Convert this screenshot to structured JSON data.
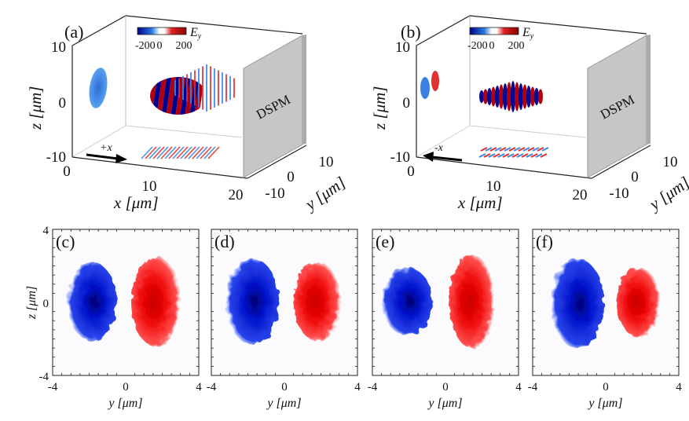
{
  "figure": {
    "panels_3d": [
      {
        "id": "a",
        "label": "(a)",
        "direction_label": "+x",
        "direction": "right",
        "plate_label": "DSPM",
        "colorbar": {
          "label": "E",
          "label_sub": "y",
          "ticks": [
            "-200",
            "0",
            "200"
          ]
        },
        "z_ticks": [
          "10",
          "0",
          "-10"
        ],
        "x_ticks": [
          "0",
          "10",
          "20"
        ],
        "y_ticks": [
          "-10",
          "0",
          "10"
        ],
        "xlabel": "x [μm]",
        "ylabel": "y [μm]",
        "zlabel": "z [μm]"
      },
      {
        "id": "b",
        "label": "(b)",
        "direction_label": "-x",
        "direction": "left",
        "plate_label": "DSPM",
        "colorbar": {
          "label": "E",
          "label_sub": "y",
          "ticks": [
            "-200",
            "0",
            "200"
          ]
        },
        "z_ticks": [
          "10",
          "0",
          "-10"
        ],
        "x_ticks": [
          "0",
          "10",
          "20"
        ],
        "y_ticks": [
          "-10",
          "0",
          "10"
        ],
        "xlabel": "x [μm]",
        "ylabel": "y [μm]",
        "zlabel": "z [μm]"
      }
    ],
    "panels_2d": [
      {
        "id": "c",
        "label": "(c)",
        "x_ticks": [
          "-4",
          "0",
          "4"
        ],
        "y_ticks": [
          "4",
          "0",
          "-4"
        ],
        "xlabel": "y [μm]",
        "ylabel": "z [μm]"
      },
      {
        "id": "d",
        "label": "(d)",
        "x_ticks": [
          "-4",
          "0",
          "4"
        ],
        "xlabel": "y [μm]"
      },
      {
        "id": "e",
        "label": "(e)",
        "x_ticks": [
          "-4",
          "0",
          "4"
        ],
        "xlabel": "y [μm]"
      },
      {
        "id": "f",
        "label": "(f)",
        "x_ticks": [
          "-4",
          "0",
          "4"
        ],
        "xlabel": "y [μm]"
      }
    ],
    "colors": {
      "positive": "#e00000",
      "negative": "#0010d0",
      "plate": "#c8c8c8"
    }
  },
  "chart_data": [
    {
      "type": "heatmap",
      "title": "(c)",
      "xlabel": "y [μm]",
      "ylabel": "z [μm]",
      "xlim": [
        -4,
        4
      ],
      "ylim": [
        -4,
        4
      ],
      "lobes": [
        {
          "sign": "negative",
          "center": [
            -1.8,
            0.0
          ],
          "y_extent": [
            -3.2,
            -0.5
          ],
          "z_extent": [
            -2.1,
            2.2
          ]
        },
        {
          "sign": "positive",
          "center": [
            1.8,
            -0.3
          ],
          "y_extent": [
            0.3,
            3.0
          ],
          "z_extent": [
            -2.4,
            2.5
          ]
        }
      ]
    },
    {
      "type": "heatmap",
      "title": "(d)",
      "xlabel": "y [μm]",
      "xlim": [
        -4,
        4
      ],
      "ylim": [
        -4,
        4
      ],
      "lobes": [
        {
          "sign": "negative",
          "center": [
            -1.7,
            0.0
          ],
          "y_extent": [
            -3.2,
            -0.3
          ],
          "z_extent": [
            -2.3,
            2.4
          ]
        },
        {
          "sign": "positive",
          "center": [
            1.5,
            0.0
          ],
          "y_extent": [
            0.5,
            3.1
          ],
          "z_extent": [
            -2.1,
            2.2
          ]
        }
      ]
    },
    {
      "type": "heatmap",
      "title": "(e)",
      "xlabel": "y [μm]",
      "xlim": [
        -4,
        4
      ],
      "ylim": [
        -4,
        4
      ],
      "lobes": [
        {
          "sign": "negative",
          "center": [
            -2.0,
            0.0
          ],
          "y_extent": [
            -3.5,
            -0.7
          ],
          "z_extent": [
            -1.8,
            1.9
          ]
        },
        {
          "sign": "positive",
          "center": [
            1.5,
            0.0
          ],
          "y_extent": [
            0.2,
            2.7
          ],
          "z_extent": [
            -2.5,
            2.6
          ]
        }
      ]
    },
    {
      "type": "heatmap",
      "title": "(f)",
      "xlabel": "y [μm]",
      "xlim": [
        -4,
        4
      ],
      "ylim": [
        -4,
        4
      ],
      "lobes": [
        {
          "sign": "negative",
          "center": [
            -1.5,
            0.0
          ],
          "y_extent": [
            -3.0,
            -0.1
          ],
          "z_extent": [
            -2.5,
            2.4
          ]
        },
        {
          "sign": "positive",
          "center": [
            1.8,
            -0.2
          ],
          "y_extent": [
            0.6,
            3.0
          ],
          "z_extent": [
            -1.9,
            1.9
          ]
        }
      ]
    }
  ]
}
